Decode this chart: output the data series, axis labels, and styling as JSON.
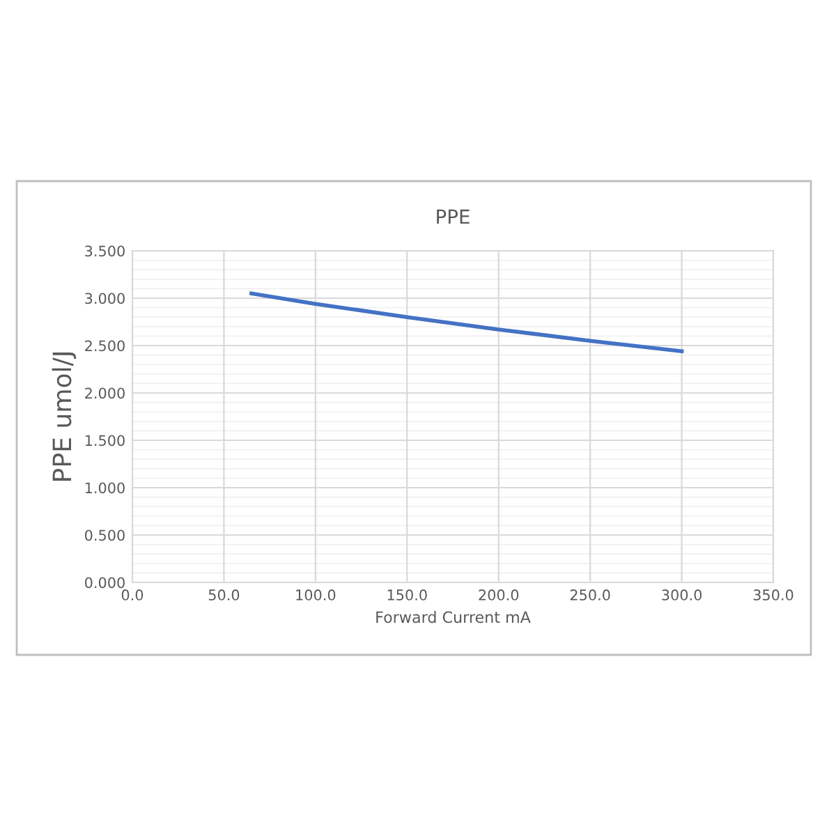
{
  "chart_data": {
    "type": "line",
    "title": "PPE",
    "xlabel": "Forward Current mA",
    "ylabel": "PPE umol/J",
    "x": [
      65,
      100,
      150,
      200,
      250,
      300
    ],
    "series": [
      {
        "color": "#4472c4",
        "values": [
          3.05,
          2.94,
          2.8,
          2.67,
          2.55,
          2.44
        ]
      }
    ],
    "xlim": [
      0,
      350
    ],
    "xticks": [
      {
        "value": 0,
        "label": "0.0"
      },
      {
        "value": 50,
        "label": "50.0"
      },
      {
        "value": 100,
        "label": "100.0"
      },
      {
        "value": 150,
        "label": "150.0"
      },
      {
        "value": 200,
        "label": "200.0"
      },
      {
        "value": 250,
        "label": "250.0"
      },
      {
        "value": 300,
        "label": "300.0"
      },
      {
        "value": 350,
        "label": "350.0"
      }
    ],
    "ylim": [
      0,
      3.5
    ],
    "yticks": [
      {
        "value": 0,
        "label": "0.000"
      },
      {
        "value": 0.5,
        "label": "0.500"
      },
      {
        "value": 1,
        "label": "1.000"
      },
      {
        "value": 1.5,
        "label": "1.500"
      },
      {
        "value": 2,
        "label": "2.000"
      },
      {
        "value": 2.5,
        "label": "2.500"
      },
      {
        "value": 3,
        "label": "3.000"
      },
      {
        "value": 3.5,
        "label": "3.500"
      }
    ],
    "grid": true,
    "marker": "none",
    "line_style": "solid",
    "legend": false
  }
}
